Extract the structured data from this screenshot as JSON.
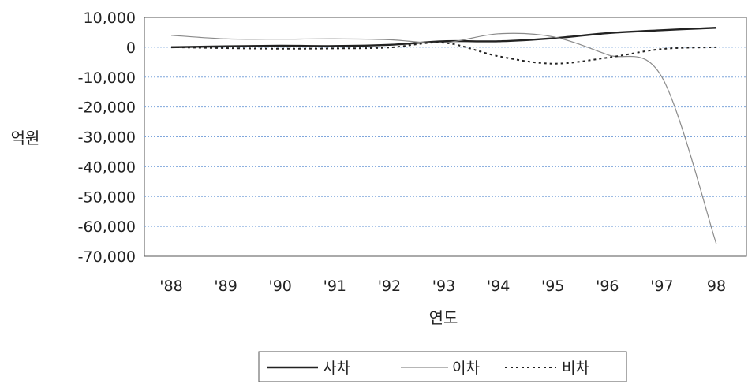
{
  "chart_data": {
    "type": "line",
    "xlabel": "연도",
    "ylabel": "억원",
    "ylim": [
      -70000,
      10000
    ],
    "y_ticks": [
      10000,
      0,
      -10000,
      -20000,
      -30000,
      -40000,
      -50000,
      -60000,
      -70000
    ],
    "y_tick_labels": [
      "10,000",
      "0",
      "-10,000",
      "-20,000",
      "-30,000",
      "-40,000",
      "-50,000",
      "-60,000",
      "-70,000"
    ],
    "categories": [
      "'88",
      "'89",
      "'90",
      "'91",
      "'92",
      "'93",
      "'94",
      "'95",
      "'96",
      "'97",
      "98"
    ],
    "grid": "horizontal-dotted",
    "legend_position": "bottom",
    "series": [
      {
        "name": "사차",
        "style": "solid-thick",
        "color": "#222222",
        "values": [
          0,
          300,
          500,
          400,
          800,
          2000,
          2000,
          3000,
          4700,
          5700,
          6500
        ]
      },
      {
        "name": "이차",
        "style": "solid-thin",
        "color": "#8a8a8a",
        "values": [
          4000,
          2800,
          2700,
          2800,
          2500,
          1500,
          4500,
          3500,
          -2500,
          -10000,
          -66000
        ]
      },
      {
        "name": "비차",
        "style": "dotted",
        "color": "#222222",
        "values": [
          0,
          -300,
          -500,
          -400,
          -100,
          1500,
          -3000,
          -5500,
          -3500,
          -600,
          0
        ]
      }
    ]
  }
}
